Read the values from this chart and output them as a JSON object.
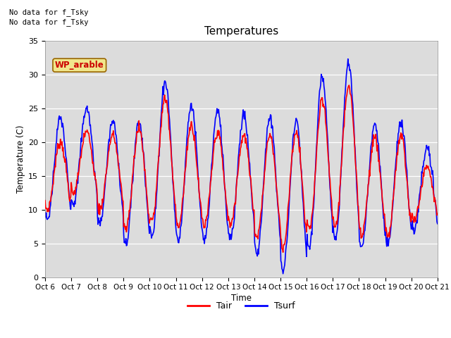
{
  "title": "Temperatures",
  "xlabel": "Time",
  "ylabel": "Temperature (C)",
  "background_color": "#dcdcdc",
  "text_above": [
    "No data for f_Tsky",
    "No data for f_Tsky"
  ],
  "wp_arable_label": "WP_arable",
  "legend_entries": [
    "Tair",
    "Tsurf"
  ],
  "tair_color": "red",
  "tsurf_color": "blue",
  "tair_lw": 1.2,
  "tsurf_lw": 1.2,
  "ylim": [
    0,
    35
  ],
  "yticks": [
    0,
    5,
    10,
    15,
    20,
    25,
    30,
    35
  ],
  "x_tick_labels": [
    "Oct 6",
    "Oct 7",
    "Oct 8",
    "Oct 9",
    "Oct 10",
    "Oct 11",
    "Oct 12",
    "Oct 13",
    "Oct 14",
    "Oct 15",
    "Oct 16",
    "Oct 17",
    "Oct 18",
    "Oct 19",
    "Oct 20",
    "Oct 21"
  ],
  "figwidth": 6.4,
  "figheight": 4.8,
  "dpi": 100
}
